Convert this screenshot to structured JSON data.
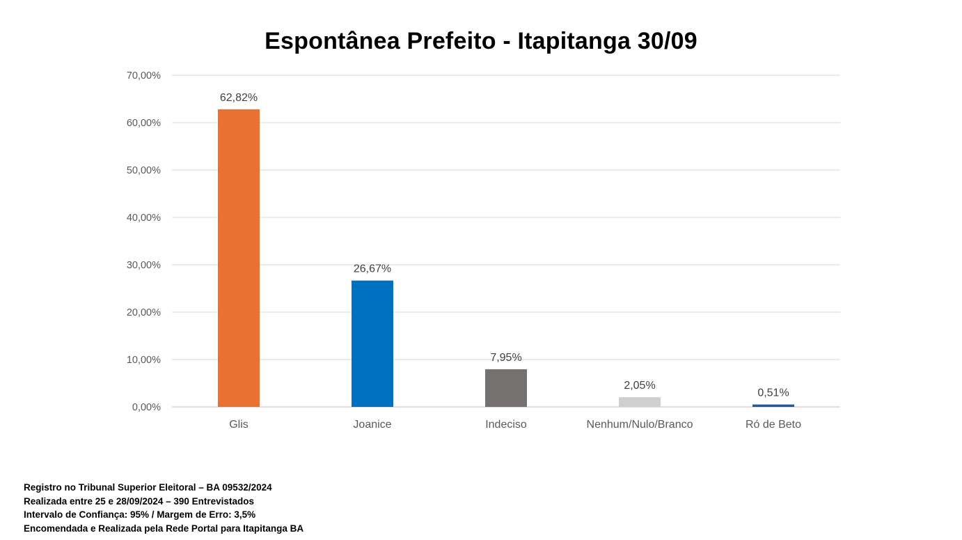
{
  "chart_data": {
    "type": "bar",
    "title": "Espontânea Prefeito - Itapitanga 30/09",
    "categories": [
      "Glis",
      "Joanice",
      "Indeciso",
      "Nenhum/Nulo/Branco",
      "Ró de Beto"
    ],
    "values": [
      62.82,
      26.67,
      7.95,
      2.05,
      0.51
    ],
    "data_labels": [
      "62,82%",
      "26,67%",
      "7,95%",
      "2,05%",
      "0,51%"
    ],
    "colors": [
      "#E97132",
      "#0070C0",
      "#767171",
      "#D0CECE",
      "#1F5C99"
    ],
    "ylim": [
      0,
      70
    ],
    "yticks": [
      0,
      10,
      20,
      30,
      40,
      50,
      60,
      70
    ],
    "ytick_labels": [
      "0,00%",
      "10,00%",
      "20,00%",
      "30,00%",
      "40,00%",
      "50,00%",
      "60,00%",
      "70,00%"
    ],
    "xlabel": "",
    "ylabel": "",
    "grid": true,
    "legend": "none"
  },
  "footnotes": [
    "Registro no Tribunal Superior Eleitoral – BA 09532/2024",
    "Realizada entre 25 e 28/09/2024 – 390 Entrevistados",
    "Intervalo de Confiança: 95% / Margem de Erro: 3,5%",
    "Encomendada e Realizada pela Rede Portal para Itapitanga BA"
  ]
}
